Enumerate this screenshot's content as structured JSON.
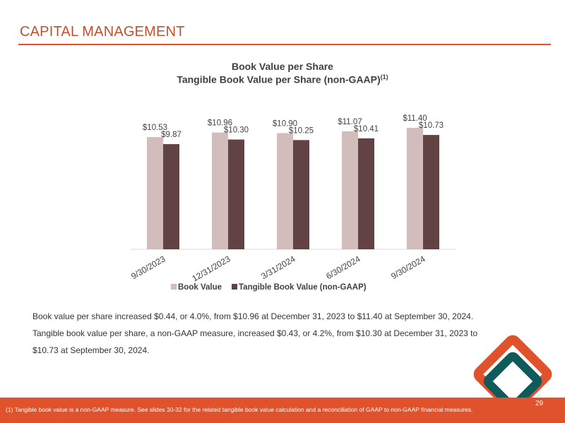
{
  "page_title": "CAPITAL MANAGEMENT",
  "chart_data": {
    "type": "bar",
    "title": "Book Value per Share",
    "subtitle": "Tangible Book Value per Share (non-GAAP)",
    "subtitle_superscript": "(1)",
    "categories": [
      "9/30/2023",
      "12/31/2023",
      "3/31/2024",
      "6/30/2024",
      "9/30/2024"
    ],
    "series": [
      {
        "name": "Book Value",
        "values": [
          10.53,
          10.96,
          10.9,
          11.07,
          11.4
        ],
        "labels": [
          "$10.53",
          "$10.96",
          "$10.90",
          "$11.07",
          "$11.40"
        ],
        "color": "#d3bcbc"
      },
      {
        "name": "Tangible Book Value (non-GAAP)",
        "values": [
          9.87,
          10.3,
          10.25,
          10.41,
          10.73
        ],
        "labels": [
          "$9.87",
          "$10.30",
          "$10.25",
          "$10.41",
          "$10.73"
        ],
        "color": "#634243"
      }
    ],
    "legend_position": "bottom",
    "grid": false
  },
  "summary": {
    "line1": "Book value per share increased $0.44, or 4.0%, from $10.96 at December 31, 2023 to $11.40 at September 30, 2024.",
    "line2": "Tangible book value per share, a non-GAAP measure, increased $0.43, or 4.2%, from $10.30 at December 31, 2023 to",
    "line3": "$10.73 at September 30, 2024."
  },
  "footnote": "(1) Tangible book value is a non-GAAP measure.  See slides 30-32 for the related tangible book value calculation and a reconciliation of GAAP to non-GAAP financial measures.",
  "slide_number": "29",
  "colors": {
    "accent": "#e0522b",
    "logo_teal": "#0f5a5a",
    "logo_orange": "#e0522b"
  }
}
